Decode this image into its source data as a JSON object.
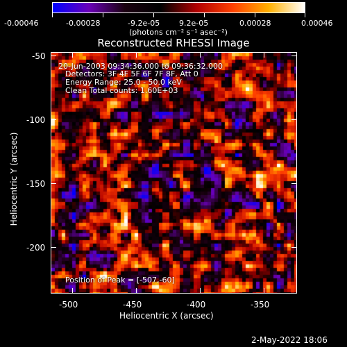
{
  "colorbar": {
    "tick_labels": [
      "-0.00046",
      "-0.00028",
      "-9.2e-05",
      "9.2e-05",
      "0.00028",
      "0.00046"
    ],
    "unit_label": "(photons cm⁻² s⁻¹ asec⁻²)"
  },
  "title": "Reconstructed RHESSI Image",
  "annotations": {
    "time_range": "20-Jun-2003 09:34:36.000 to 09:36:32.000",
    "detectors": "Detectors: 3F 4F 5F 6F 7F 8F, Att 0",
    "energy_range": "Energy Range: 25.0 - 50.0 keV",
    "method": "Clean    Total counts: 1.60E+03",
    "peak_position": "Position of Peak = [-507,-60]"
  },
  "x_axis": {
    "label": "Heliocentric X (arcsec)",
    "tick_labels": [
      "-500",
      "-450",
      "-400",
      "-350"
    ]
  },
  "y_axis": {
    "label": "Heliocentric Y (arcsec)",
    "tick_labels": [
      "-50",
      "-100",
      "-150",
      "-200"
    ]
  },
  "footer_date": "2-May-2022 18:06",
  "colors": {
    "colormap": [
      "#0000ff",
      "#6a00b8",
      "#1a0010",
      "#000000",
      "#b00000",
      "#ff4000",
      "#ffb000",
      "#ffffff"
    ]
  }
}
